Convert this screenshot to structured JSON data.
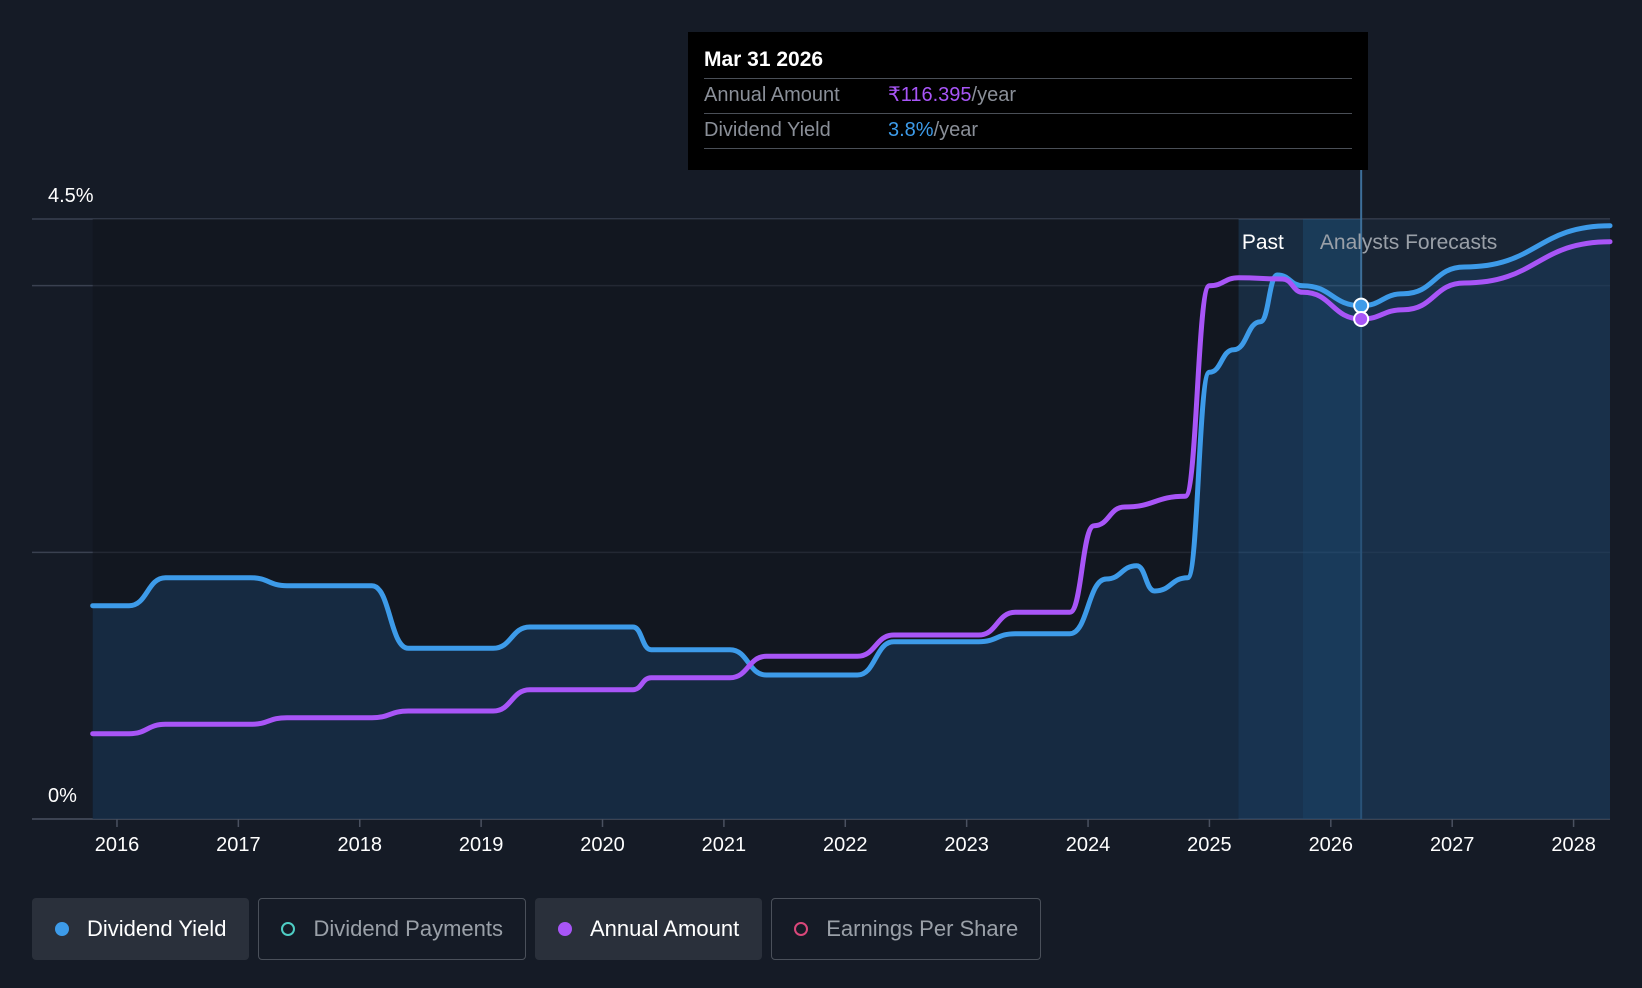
{
  "tooltip": {
    "date": "Mar 31 2026",
    "annual_amount_label": "Annual Amount",
    "annual_amount_value": "₹116.395",
    "annual_amount_unit": "/year",
    "dividend_yield_label": "Dividend Yield",
    "dividend_yield_value": "3.8%",
    "dividend_yield_unit": "/year"
  },
  "legend": [
    {
      "label": "Dividend Yield",
      "color": "#3d9be9",
      "active": true,
      "icon": "filled-circle-icon"
    },
    {
      "label": "Dividend Payments",
      "color": "#4ecdc4",
      "active": false,
      "icon": "hollow-circle-icon"
    },
    {
      "label": "Annual Amount",
      "color": "#a855f7",
      "active": true,
      "icon": "filled-circle-icon"
    },
    {
      "label": "Earnings Per Share",
      "color": "#d9477a",
      "active": false,
      "icon": "hollow-circle-icon"
    }
  ],
  "colors": {
    "background": "#151b26",
    "yield": "#3d9be9",
    "amount": "#a855f7",
    "grid": "#3a4150",
    "highlight": "#1f5b8a"
  },
  "chart_data": {
    "type": "line",
    "title": "",
    "xlabel": "",
    "ylabel": "",
    "ylim": [
      0,
      4.5
    ],
    "xlim": [
      2015.3,
      2028.3
    ],
    "y_tick_labels": [
      "4.5%",
      "0%"
    ],
    "y_tick_values": [
      4.5,
      0
    ],
    "gridlines_y": [
      4.5,
      4.0,
      2.0
    ],
    "x_tick_labels": [
      "2016",
      "2017",
      "2018",
      "2019",
      "2020",
      "2021",
      "2022",
      "2023",
      "2024",
      "2025",
      "2026",
      "2027",
      "2028"
    ],
    "x_tick_values": [
      2016,
      2017,
      2018,
      2019,
      2020,
      2021,
      2022,
      2023,
      2024,
      2025,
      2026,
      2027,
      2028
    ],
    "past_label": "Past",
    "forecast_label": "Analysts Forecasts",
    "past_region": [
      2025.24,
      2025.77
    ],
    "forecast_start": 2025.77,
    "cursor_x": 2026.25,
    "series": [
      {
        "name": "Dividend Yield",
        "points": [
          [
            2015.8,
            1.6
          ],
          [
            2016.1,
            1.6
          ],
          [
            2016.4,
            1.81
          ],
          [
            2017.1,
            1.81
          ],
          [
            2017.4,
            1.75
          ],
          [
            2018.1,
            1.75
          ],
          [
            2018.4,
            1.28
          ],
          [
            2019.1,
            1.28
          ],
          [
            2019.4,
            1.44
          ],
          [
            2020.25,
            1.44
          ],
          [
            2020.4,
            1.27
          ],
          [
            2021.05,
            1.27
          ],
          [
            2021.35,
            1.08
          ],
          [
            2022.1,
            1.08
          ],
          [
            2022.4,
            1.33
          ],
          [
            2023.1,
            1.33
          ],
          [
            2023.4,
            1.39
          ],
          [
            2023.85,
            1.39
          ],
          [
            2024.15,
            1.8
          ],
          [
            2024.4,
            1.9
          ],
          [
            2024.55,
            1.71
          ],
          [
            2024.82,
            1.81
          ],
          [
            2025.0,
            3.35
          ],
          [
            2025.2,
            3.52
          ],
          [
            2025.42,
            3.73
          ],
          [
            2025.56,
            4.08
          ],
          [
            2025.77,
            4.0
          ],
          [
            2026.25,
            3.85
          ],
          [
            2026.6,
            3.94
          ],
          [
            2027.1,
            4.14
          ],
          [
            2028.3,
            4.45
          ]
        ]
      },
      {
        "name": "Annual Amount",
        "points": [
          [
            2015.8,
            0.64
          ],
          [
            2016.1,
            0.64
          ],
          [
            2016.4,
            0.71
          ],
          [
            2017.1,
            0.71
          ],
          [
            2017.4,
            0.76
          ],
          [
            2018.1,
            0.76
          ],
          [
            2018.4,
            0.81
          ],
          [
            2019.1,
            0.81
          ],
          [
            2019.4,
            0.97
          ],
          [
            2020.25,
            0.97
          ],
          [
            2020.4,
            1.06
          ],
          [
            2021.05,
            1.06
          ],
          [
            2021.35,
            1.22
          ],
          [
            2022.1,
            1.22
          ],
          [
            2022.4,
            1.38
          ],
          [
            2023.1,
            1.38
          ],
          [
            2023.4,
            1.55
          ],
          [
            2023.85,
            1.55
          ],
          [
            2024.05,
            2.2
          ],
          [
            2024.3,
            2.34
          ],
          [
            2024.8,
            2.42
          ],
          [
            2025.0,
            4.0
          ],
          [
            2025.24,
            4.06
          ],
          [
            2025.6,
            4.05
          ],
          [
            2025.77,
            3.95
          ],
          [
            2026.25,
            3.75
          ],
          [
            2026.6,
            3.82
          ],
          [
            2027.1,
            4.02
          ],
          [
            2028.3,
            4.33
          ]
        ]
      }
    ]
  }
}
